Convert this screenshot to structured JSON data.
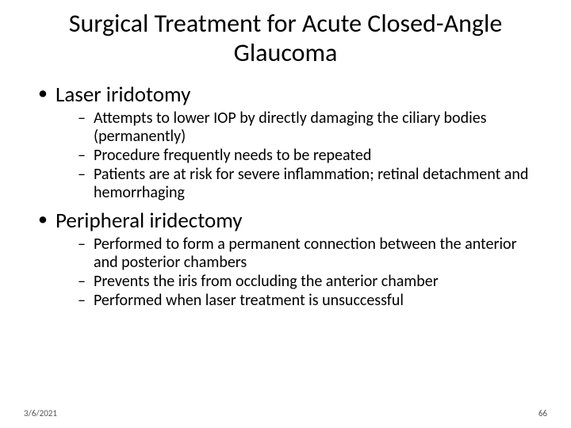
{
  "slide": {
    "title": "Surgical Treatment for Acute Closed-Angle Glaucoma",
    "title_fontsize": 32,
    "body_fontsize_l1": 27,
    "body_fontsize_l2": 20,
    "background_color": "#ffffff",
    "text_color": "#000000",
    "bullets": [
      {
        "label": "Laser iridotomy",
        "sub": [
          "Attempts to lower IOP by directly damaging the ciliary bodies (permanently)",
          "Procedure frequently needs to be repeated",
          "Patients are at risk for severe inflammation; retinal detachment and hemorrhaging"
        ]
      },
      {
        "label": "Peripheral iridectomy",
        "sub": [
          "Performed to form a permanent connection between the anterior and posterior chambers",
          "Prevents the iris from occluding the anterior chamber",
          "Performed when laser treatment is unsuccessful"
        ]
      }
    ],
    "footer": {
      "date": "3/6/2021",
      "page_number": "66",
      "footer_fontsize": 11,
      "footer_color": "#555555"
    }
  }
}
